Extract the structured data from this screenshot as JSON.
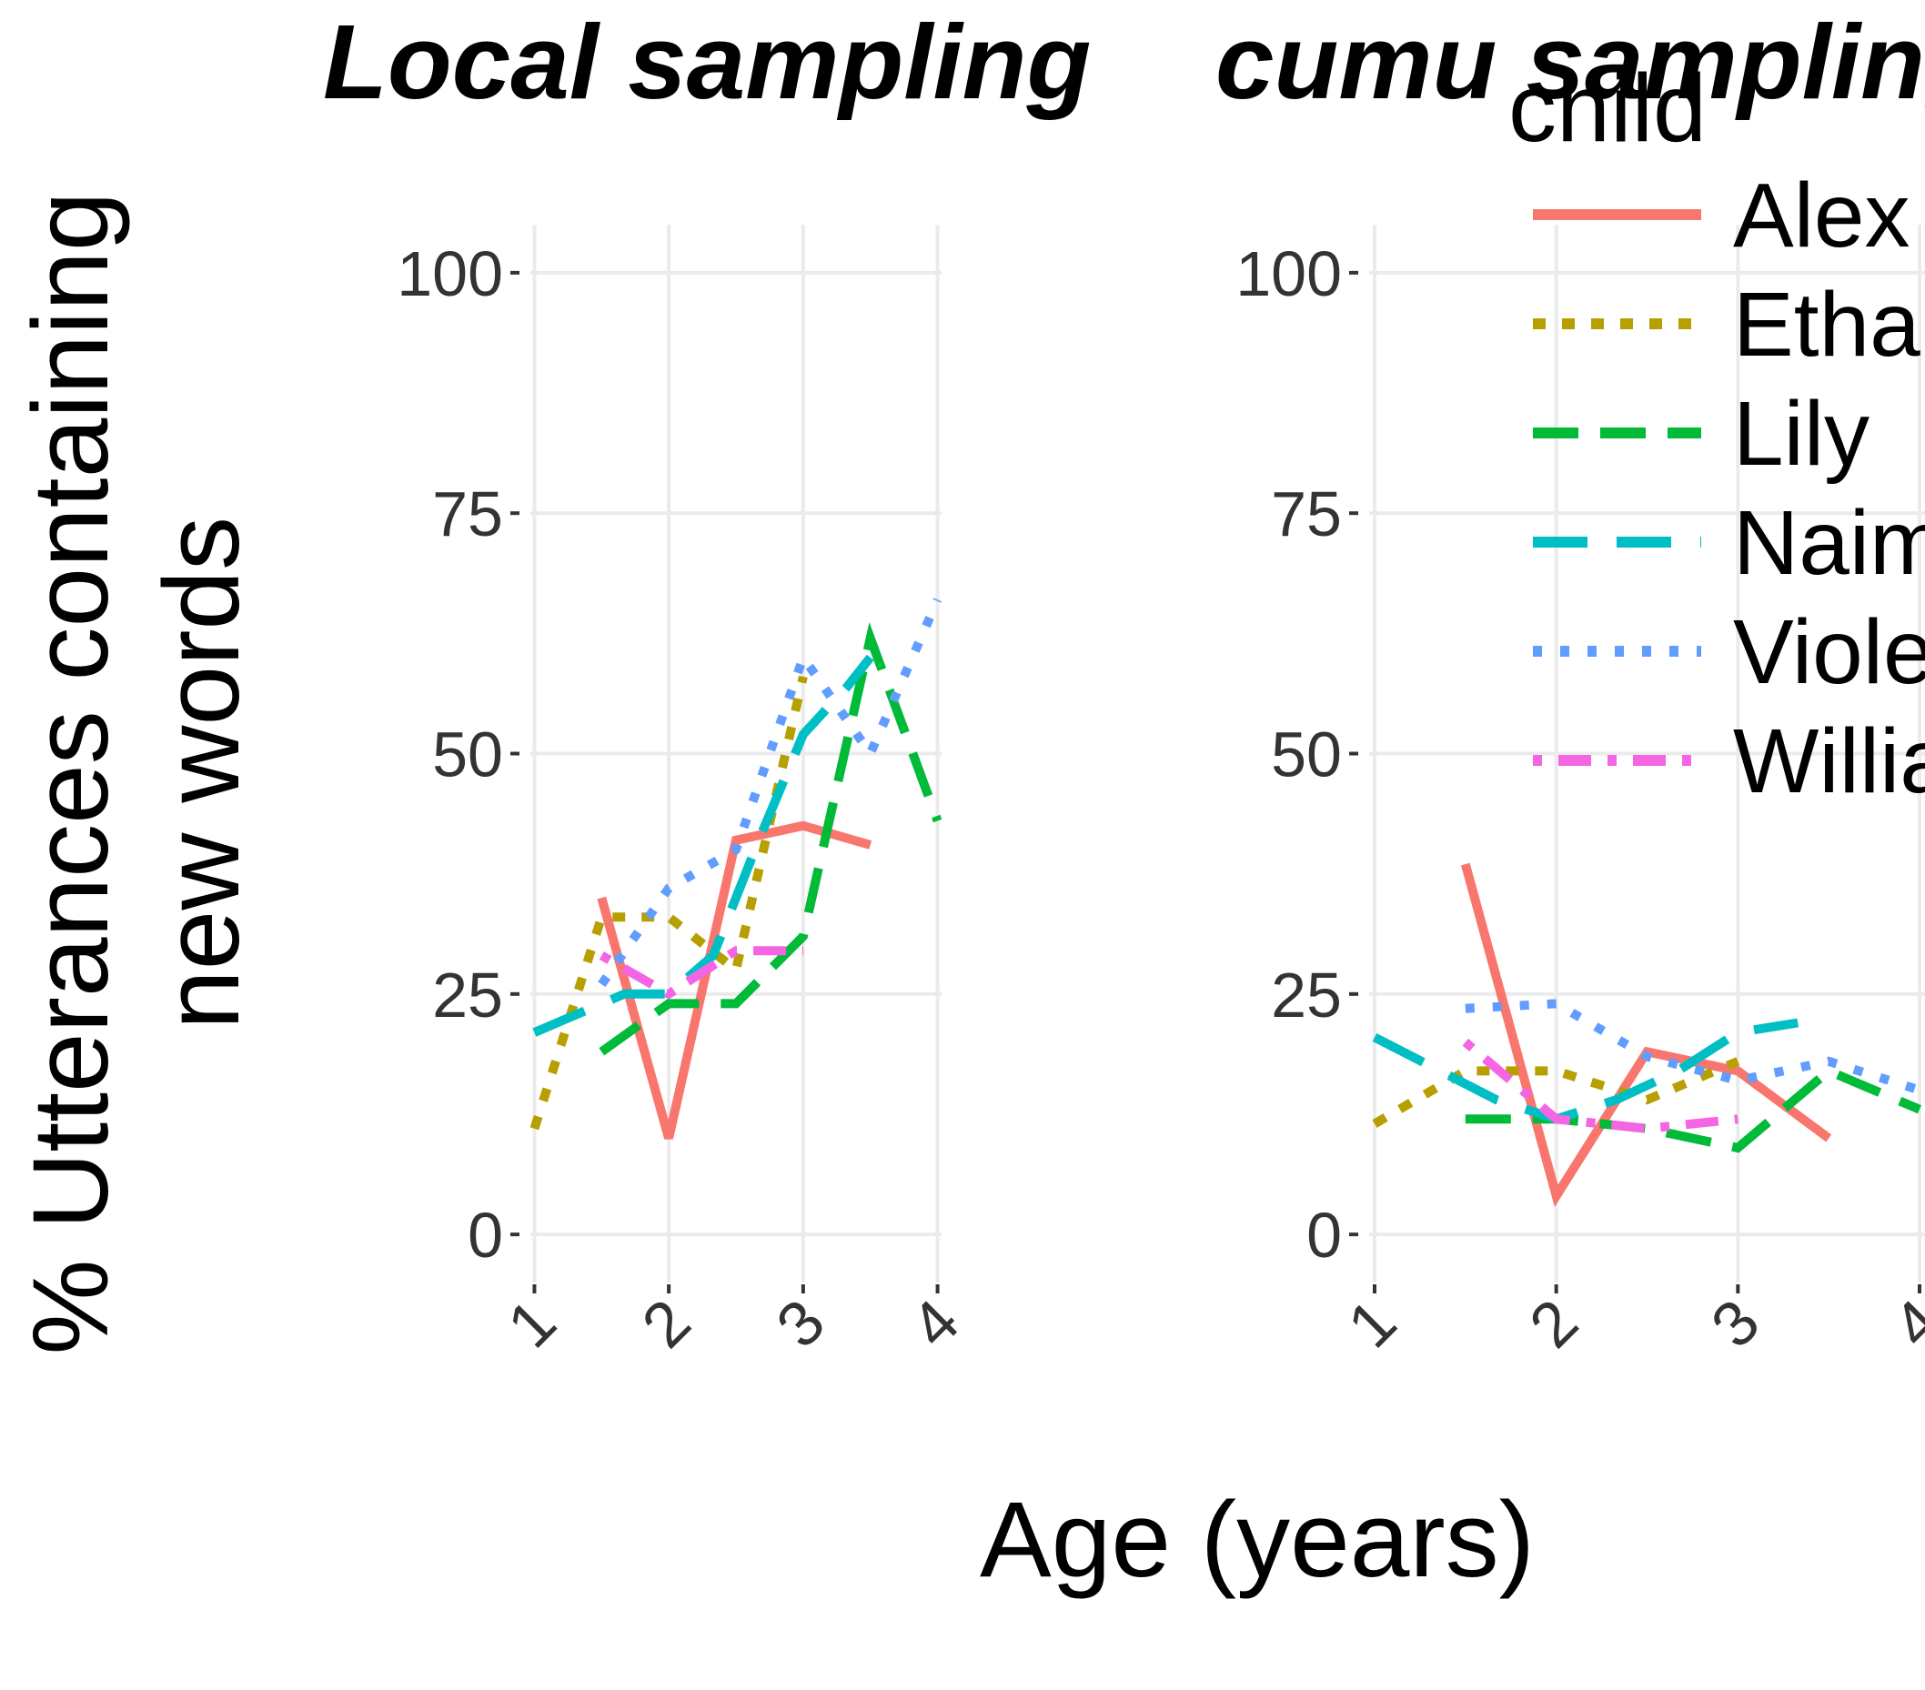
{
  "chart_data": {
    "type": "line",
    "legend": {
      "title": "child",
      "placement": "right"
    },
    "series_styles": [
      {
        "name": "Alex",
        "color": "#F8766D",
        "dash": "solid"
      },
      {
        "name": "Ethan",
        "color": "#B79F00",
        "dash": "dotted"
      },
      {
        "name": "Lily",
        "color": "#00BA38",
        "dash": "dashed"
      },
      {
        "name": "Naima",
        "color": "#00BFC4",
        "dash": "longdash"
      },
      {
        "name": "Violet",
        "color": "#619CFF",
        "dash": "dotdense"
      },
      {
        "name": "William",
        "color": "#F564E3",
        "dash": "dotdash"
      }
    ],
    "xlabel": "Age (years)",
    "ylabel_lines": [
      "% Utterances containing",
      "new words"
    ],
    "xlim": [
      0.97,
      4.03
    ],
    "ylim": [
      -5,
      105
    ],
    "x_ticks": [
      1,
      2,
      3,
      4
    ],
    "y_ticks": [
      0,
      25,
      50,
      75,
      100
    ],
    "grid": true,
    "panels": [
      {
        "title": "Local sampling",
        "series": [
          {
            "name": "Alex",
            "x": [
              1.5,
              2.0,
              2.5,
              3.0,
              3.5
            ],
            "y": [
              35,
              10,
              41,
              42.5,
              40.5
            ]
          },
          {
            "name": "Ethan",
            "x": [
              1.0,
              1.5,
              2.0,
              2.5,
              3.0
            ],
            "y": [
              11,
              33,
              33,
              27.5,
              58
            ]
          },
          {
            "name": "Lily",
            "x": [
              1.5,
              2.0,
              2.5,
              3.0,
              3.5,
              4.0
            ],
            "y": [
              19,
              24,
              24,
              31,
              62,
              43
            ]
          },
          {
            "name": "Naima",
            "x": [
              1.0,
              1.67,
              2.0,
              2.33,
              2.67,
              3.0,
              3.33,
              3.5
            ],
            "y": [
              21,
              25,
              25,
              29,
              41,
              52,
              57,
              60
            ]
          },
          {
            "name": "Violet",
            "x": [
              1.5,
              2.0,
              2.5,
              3.0,
              3.5,
              4.0
            ],
            "y": [
              26,
              36,
              40,
              60,
              50,
              66
            ]
          },
          {
            "name": "William",
            "x": [
              1.5,
              2.0,
              2.5,
              3.0
            ],
            "y": [
              29,
              25,
              29.5,
              29.5
            ]
          }
        ]
      },
      {
        "title": "cumu sampling",
        "series": [
          {
            "name": "Alex",
            "x": [
              1.5,
              2.0,
              2.5,
              3.0,
              3.5
            ],
            "y": [
              38.5,
              4,
              19,
              17,
              10
            ]
          },
          {
            "name": "Ethan",
            "x": [
              1.0,
              1.5,
              2.0,
              2.5,
              3.0
            ],
            "y": [
              11.5,
              17,
              17,
              14,
              18
            ]
          },
          {
            "name": "Lily",
            "x": [
              1.5,
              2.0,
              2.5,
              3.0,
              3.5,
              4.0
            ],
            "y": [
              12,
              12,
              11,
              9,
              17,
              13
            ]
          },
          {
            "name": "Naima",
            "x": [
              1.0,
              1.67,
              2.0,
              2.33,
              2.67,
              3.0,
              3.33
            ],
            "y": [
              20.5,
              14,
              12,
              14,
              17,
              21,
              22
            ]
          },
          {
            "name": "Violet",
            "x": [
              1.5,
              2.0,
              2.5,
              3.0,
              3.5,
              4.0
            ],
            "y": [
              23.5,
              24,
              18.5,
              16,
              18,
              15
            ]
          },
          {
            "name": "William",
            "x": [
              1.5,
              2.0,
              2.5,
              3.0
            ],
            "y": [
              20,
              12,
              11,
              12
            ]
          }
        ]
      }
    ]
  }
}
